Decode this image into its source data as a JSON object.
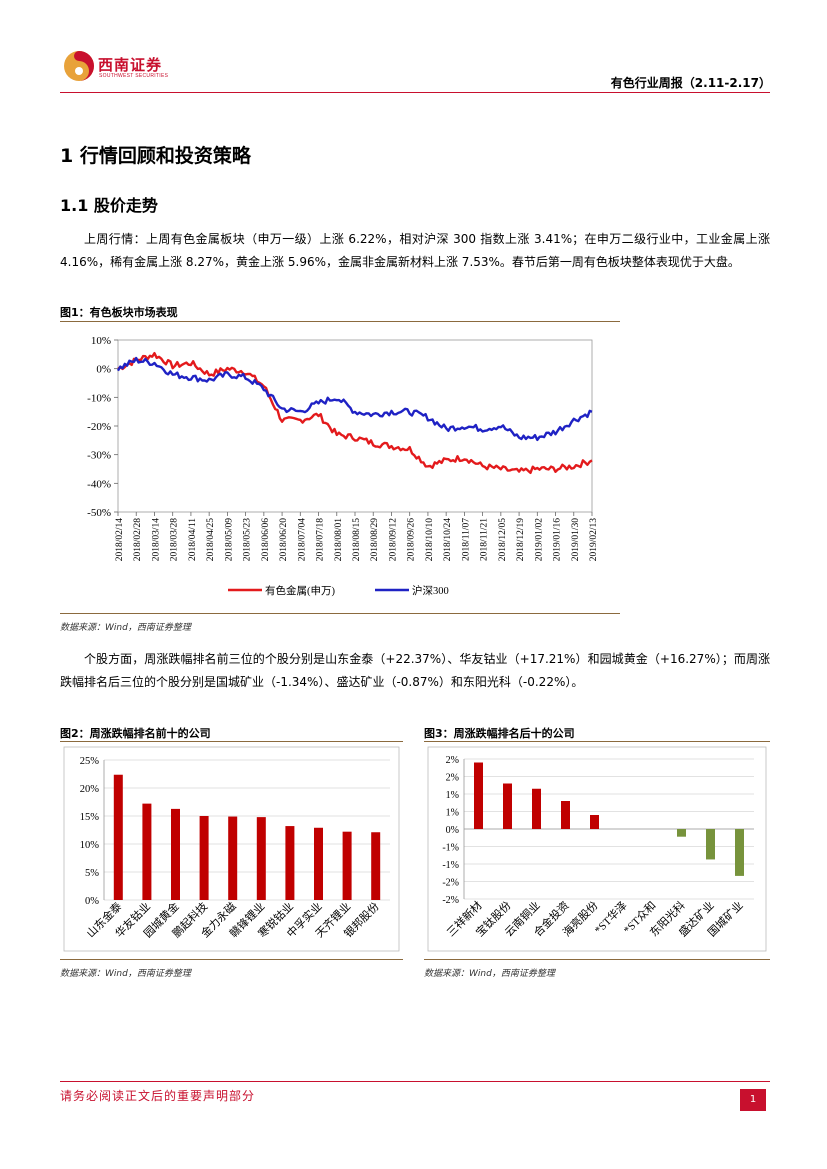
{
  "header": {
    "logo_name": "西南证券",
    "logo_sub": "SOUTHWEST SECURITIES",
    "report_title": "有色行业周报（2.11-2.17）"
  },
  "section1": {
    "title": "1 行情回顾和投资策略"
  },
  "section1_1": {
    "title": "1.1 股价走势"
  },
  "para1": "上周行情：上周有色金属板块（申万一级）上涨 6.22%，相对沪深 300 指数上涨 3.41%；在申万二级行业中，工业金属上涨 4.16%，稀有金属上涨 8.27%，黄金上涨 5.96%，金属非金属新材料上涨 7.53%。春节后第一周有色板块整体表现优于大盘。",
  "fig1": {
    "title": "图1：有色板块市场表现",
    "source": "数据来源：Wind，西南证券整理"
  },
  "para2": "个股方面，周涨跌幅排名前三位的个股分别是山东金泰（+22.37%）、华友钴业（+17.21%）和园城黄金（+16.27%）；而周涨跌幅排名后三位的个股分别是国城矿业（-1.34%）、盛达矿业（-0.87%）和东阳光科（-0.22%）。",
  "fig2": {
    "title": "图2：周涨跌幅排名前十的公司",
    "source": "数据来源：Wind，西南证券整理"
  },
  "fig3": {
    "title": "图3：周涨跌幅排名后十的公司",
    "source": "数据来源：Wind，西南证券整理"
  },
  "footer": {
    "disclaimer": "请务必阅读正文后的重要声明部分",
    "page": "1"
  },
  "colors": {
    "brand_red": "#c8102e",
    "series_red": "#e31a1c",
    "series_blue": "#1f22c4",
    "bar_red": "#c00000",
    "bar_green": "#77933c"
  },
  "chart_data": [
    {
      "type": "line",
      "ylim": [
        -50,
        10
      ],
      "yticks": [
        "10%",
        "0%",
        "-10%",
        "-20%",
        "-30%",
        "-40%",
        "-50%"
      ],
      "x_ticks": [
        "2018/02/14",
        "2018/02/28",
        "2018/03/14",
        "2018/03/28",
        "2018/04/11",
        "2018/04/25",
        "2018/05/09",
        "2018/05/23",
        "2018/06/06",
        "2018/06/20",
        "2018/07/04",
        "2018/07/18",
        "2018/08/01",
        "2018/08/15",
        "2018/08/29",
        "2018/09/12",
        "2018/09/26",
        "2018/10/10",
        "2018/10/24",
        "2018/11/07",
        "2018/11/21",
        "2018/12/05",
        "2018/12/19",
        "2019/01/02",
        "2019/01/16",
        "2019/01/30",
        "2019/02/13"
      ],
      "legend_position": "bottom",
      "series": [
        {
          "name": "有色金属(申万)",
          "color": "#e31a1c",
          "values": [
            0,
            3,
            5,
            1,
            2,
            -2,
            0,
            -1,
            -6,
            -18,
            -18,
            -16,
            -23,
            -24,
            -26,
            -27,
            -28,
            -34,
            -32,
            -31,
            -34,
            -35,
            -36,
            -35,
            -35,
            -34,
            -32
          ]
        },
        {
          "name": "沪深300",
          "color": "#1f22c4",
          "values": [
            0,
            3,
            2,
            -2,
            -3,
            -4,
            -2,
            -3,
            -7,
            -14,
            -15,
            -12,
            -10,
            -15,
            -16,
            -15,
            -15,
            -17,
            -21,
            -20,
            -21,
            -20,
            -24,
            -24,
            -22,
            -18,
            -15
          ]
        }
      ]
    },
    {
      "type": "bar",
      "categories": [
        "山东金泰",
        "华友钴业",
        "园城黄金",
        "鹏起科技",
        "金力永磁",
        "赣锋锂业",
        "寒锐钴业",
        "中孚实业",
        "天齐锂业",
        "银邦股份"
      ],
      "values": [
        22.37,
        17.21,
        16.27,
        15.0,
        14.9,
        14.8,
        13.2,
        12.9,
        12.2,
        12.1
      ],
      "ylim": [
        0,
        25
      ],
      "yticks": [
        "25%",
        "20%",
        "15%",
        "10%",
        "5%",
        "0%"
      ],
      "color": "#c00000"
    },
    {
      "type": "bar",
      "categories": [
        "三祥新材",
        "宝钛股份",
        "云南铜业",
        "合金投资",
        "海亮股份",
        "*ST华泽",
        "*ST众和",
        "东阳光科",
        "盛达矿业",
        "国城矿业"
      ],
      "values": [
        1.9,
        1.3,
        1.15,
        0.8,
        0.4,
        0,
        0,
        -0.22,
        -0.87,
        -1.34
      ],
      "ylim": [
        -2,
        2
      ],
      "yticks": [
        "2%",
        "2%",
        "1%",
        "1%",
        "0%",
        "-1%",
        "-1%",
        "-2%",
        "-2%"
      ],
      "positive_color": "#c00000",
      "negative_color": "#77933c"
    }
  ]
}
